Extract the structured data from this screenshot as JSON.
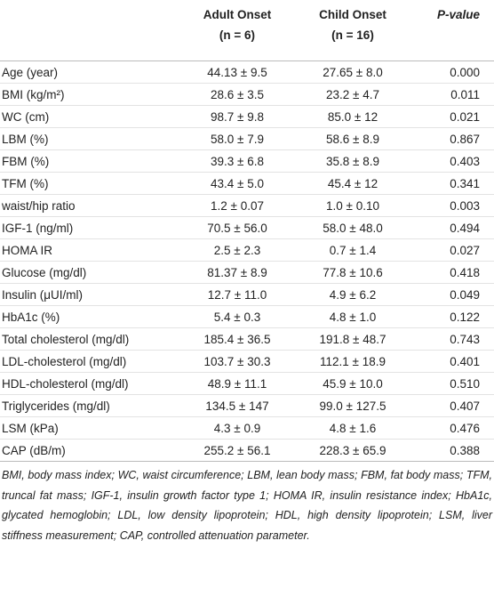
{
  "table": {
    "columns": [
      {
        "label": "Adult Onset",
        "n": "(n = 6)"
      },
      {
        "label": "Child Onset",
        "n": "(n = 16)"
      },
      {
        "label": "P-value"
      }
    ],
    "rows": [
      [
        "Age (year)",
        "44.13 ± 9.5",
        "27.65 ± 8.0",
        "0.000"
      ],
      [
        "BMI (kg/m²)",
        "28.6 ± 3.5",
        "23.2 ± 4.7",
        "0.011"
      ],
      [
        "WC (cm)",
        "98.7 ± 9.8",
        "85.0 ± 12",
        "0.021"
      ],
      [
        "LBM (%)",
        "58.0 ± 7.9",
        "58.6 ± 8.9",
        "0.867"
      ],
      [
        "FBM (%)",
        "39.3 ± 6.8",
        "35.8 ± 8.9",
        "0.403"
      ],
      [
        "TFM (%)",
        "43.4 ± 5.0",
        "45.4 ± 12",
        "0.341"
      ],
      [
        "waist/hip ratio",
        "1.2 ± 0.07",
        "1.0 ± 0.10",
        "0.003"
      ],
      [
        "IGF-1 (ng/ml)",
        "70.5 ± 56.0",
        "58.0 ± 48.0",
        "0.494"
      ],
      [
        "HOMA IR",
        "2.5 ± 2.3",
        "0.7 ± 1.4",
        "0.027"
      ],
      [
        "Glucose (mg/dl)",
        "81.37 ± 8.9",
        "77.8 ± 10.6",
        "0.418"
      ],
      [
        "Insulin (μUI/ml)",
        "12.7 ± 11.0",
        "4.9 ± 6.2",
        "0.049"
      ],
      [
        "HbA1c (%)",
        "5.4 ± 0.3",
        "4.8 ± 1.0",
        "0.122"
      ],
      [
        "Total cholesterol (mg/dl)",
        "185.4 ± 36.5",
        "191.8 ± 48.7",
        "0.743"
      ],
      [
        "LDL-cholesterol (mg/dl)",
        "103.7 ± 30.3",
        "112.1 ± 18.9",
        "0.401"
      ],
      [
        "HDL-cholesterol (mg/dl)",
        "48.9 ± 11.1",
        "45.9 ± 10.0",
        "0.510"
      ],
      [
        "Triglycerides (mg/dl)",
        "134.5 ± 147",
        "99.0 ± 127.5",
        "0.407"
      ],
      [
        "LSM (kPa)",
        "4.3 ± 0.9",
        "4.8 ± 1.6",
        "0.476"
      ],
      [
        "CAP (dB/m)",
        "255.2 ± 56.1",
        "228.3 ± 65.9",
        "0.388"
      ]
    ]
  },
  "footnote": "BMI, body mass index; WC, waist circumference; LBM, lean body mass; FBM, fat body mass; TFM, truncal fat mass; IGF-1, insulin growth factor type 1; HOMA IR, insulin resistance index; HbA1c, glycated hemoglobin; LDL, low density lipoprotein; HDL, high density lipoprotein; LSM, liver stiffness measurement; CAP, controlled attenuation parameter."
}
